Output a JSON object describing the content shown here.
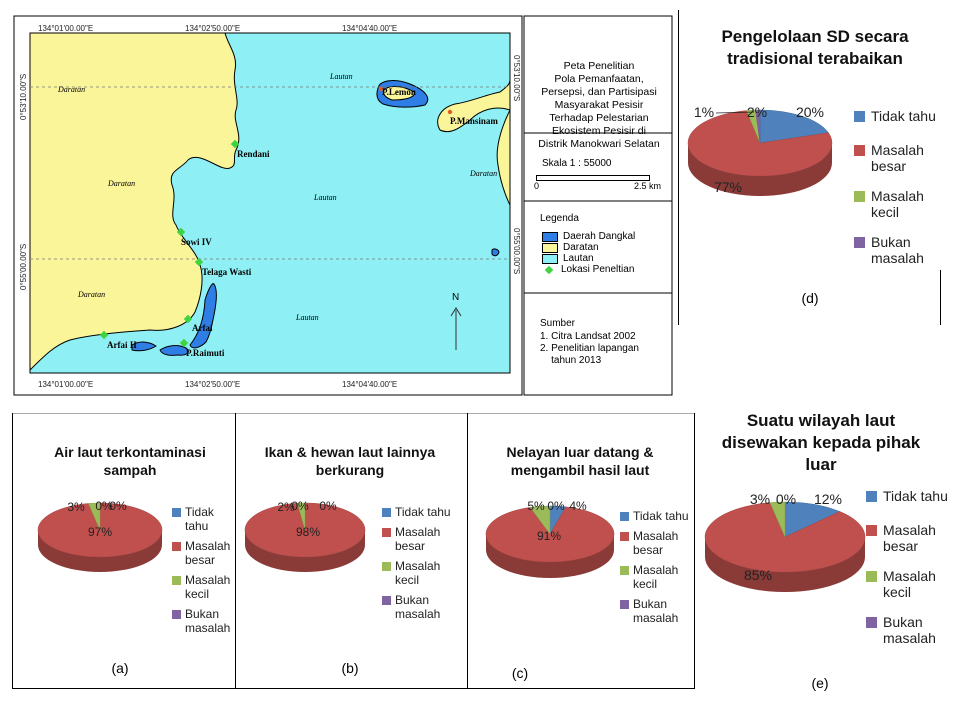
{
  "map": {
    "coords_top": [
      "134°01'00.00\"E",
      "134°02'50.00\"E",
      "134°04'40.00\"E"
    ],
    "coords_bottom": [
      "134°01'00.00\"E",
      "134°02'50.00\"E",
      "134°04'40.00\"E"
    ],
    "coords_left": [
      "0°53'10.00\"S",
      "0°55'00.00\"S"
    ],
    "coords_right": [
      "0°53'10.00\"S",
      "0°55'00.00\"S"
    ],
    "places": {
      "rendani": "Rendani",
      "sowi": "Sowi IV",
      "telaga": "Telaga Wasti",
      "arfai": "Arfai",
      "arfai2": "Arfai II",
      "raimuti": "P.Raimuti",
      "lemon": "P.Lemon",
      "mansinam": "P.Mansinam"
    },
    "area_labels": {
      "daratan": "Daratan",
      "lautan": "Lautan"
    },
    "north": "N",
    "info_title": "Peta Penelitian\nPola Pemanfaatan,\nPersepsi, dan Partisipasi\nMasyarakat Pesisir\nTerhadap Pelestarian\nEkosistem Pesisir di\nDistrik Manokwari Selatan",
    "scale_label": "Skala 1 : 55000",
    "scale_zero": "0",
    "scale_end": "2.5 km",
    "legend_title": "Legenda",
    "legend": [
      "Daerah Dangkal",
      "Daratan",
      "Lautan",
      "Lokasi Peneltian"
    ],
    "legend_colors": [
      "#2e7ee6",
      "#fbf59a",
      "#8ef0f5",
      "#3fd43f"
    ],
    "source_title": "Sumber",
    "sources": [
      "1. Citra Landsat 2002",
      "2. Penelitian lapangan\n    tahun 2013"
    ]
  },
  "colors": {
    "tidak_tahu": "#4f81bd",
    "masalah_besar": "#c0504d",
    "masalah_kecil": "#9bbb59",
    "bukan_masalah": "#8064a2",
    "land": "#fbf59a",
    "sea": "#8ef0f5",
    "shallow": "#2e7ee6"
  },
  "chart_data": [
    {
      "id": "a",
      "type": "pie",
      "title": "Air laut  terkontaminasi sampah",
      "categories": [
        "Tidak tahu",
        "Masalah besar",
        "Masalah kecil",
        "Bukan masalah"
      ],
      "values": [
        0,
        97,
        3,
        0
      ],
      "value_labels": [
        "0%",
        "97%",
        "3%",
        "0%"
      ],
      "panel_label": "(a)"
    },
    {
      "id": "b",
      "type": "pie",
      "title": "Ikan & hewan laut lainnya berkurang",
      "categories": [
        "Tidak tahu",
        "Masalah besar",
        "Masalah kecil",
        "Bukan masalah"
      ],
      "values": [
        0,
        98,
        2,
        0
      ],
      "value_labels": [
        "0%",
        "98%",
        "2%",
        "0%"
      ],
      "panel_label": "(b)"
    },
    {
      "id": "c",
      "type": "pie",
      "title": "Nelayan luar datang & mengambil hasil laut",
      "categories": [
        "Tidak tahu",
        "Masalah besar",
        "Masalah kecil",
        "Bukan masalah"
      ],
      "values": [
        4,
        91,
        5,
        0
      ],
      "value_labels": [
        "4%",
        "91%",
        "5%",
        "0%"
      ],
      "panel_label": "(c)"
    },
    {
      "id": "d",
      "type": "pie",
      "title": "Pengelolaan SD secara tradisional terabaikan",
      "categories": [
        "Tidak tahu",
        "Masalah besar",
        "Masalah kecil",
        "Bukan masalah"
      ],
      "values": [
        20,
        77,
        2,
        1
      ],
      "value_labels": [
        "20%",
        "77%",
        "2%",
        "1%"
      ],
      "panel_label": "(d)"
    },
    {
      "id": "e",
      "type": "pie",
      "title": "Suatu wilayah laut disewakan kepada pihak luar",
      "categories": [
        "Tidak tahu",
        "Masalah besar",
        "Masalah kecil",
        "Bukan masalah"
      ],
      "values": [
        12,
        85,
        3,
        0
      ],
      "value_labels": [
        "12%",
        "85%",
        "3%",
        "0%"
      ],
      "panel_label": "(e)"
    }
  ]
}
